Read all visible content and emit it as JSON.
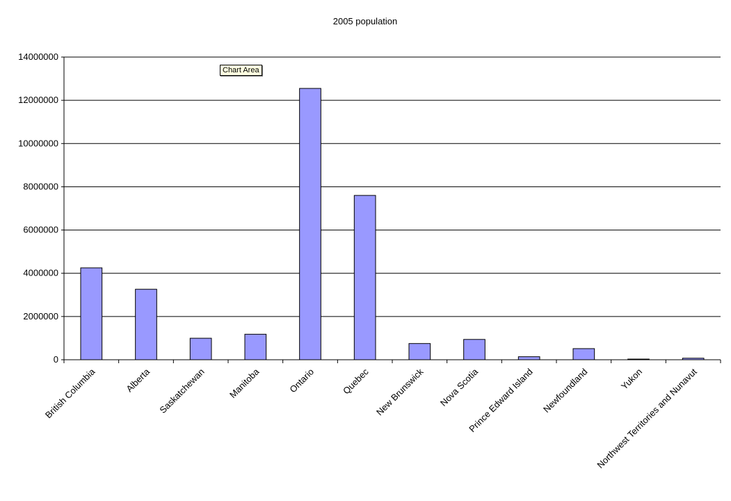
{
  "chart_data": {
    "type": "bar",
    "title": "2005 population",
    "categories": [
      "British Columbia",
      "Alberta",
      "Saskatchewan",
      "Manitoba",
      "Ontario",
      "Quebec",
      "New Brunswick",
      "Nova Scotia",
      "Prince Edward Island",
      "Newfoundland",
      "Yukon",
      "Northwest Territories and Nunavut"
    ],
    "values": [
      4250000,
      3260000,
      995000,
      1180000,
      12550000,
      7600000,
      750000,
      940000,
      140000,
      515000,
      31000,
      72000
    ],
    "ylim": [
      0,
      14000000
    ],
    "yticks": [
      "0",
      "2000000",
      "4000000",
      "6000000",
      "8000000",
      "10000000",
      "12000000",
      "14000000"
    ],
    "grid": true,
    "bar_color": "#9999ff",
    "legend": "none"
  },
  "tooltip": {
    "label": "Chart Area"
  }
}
